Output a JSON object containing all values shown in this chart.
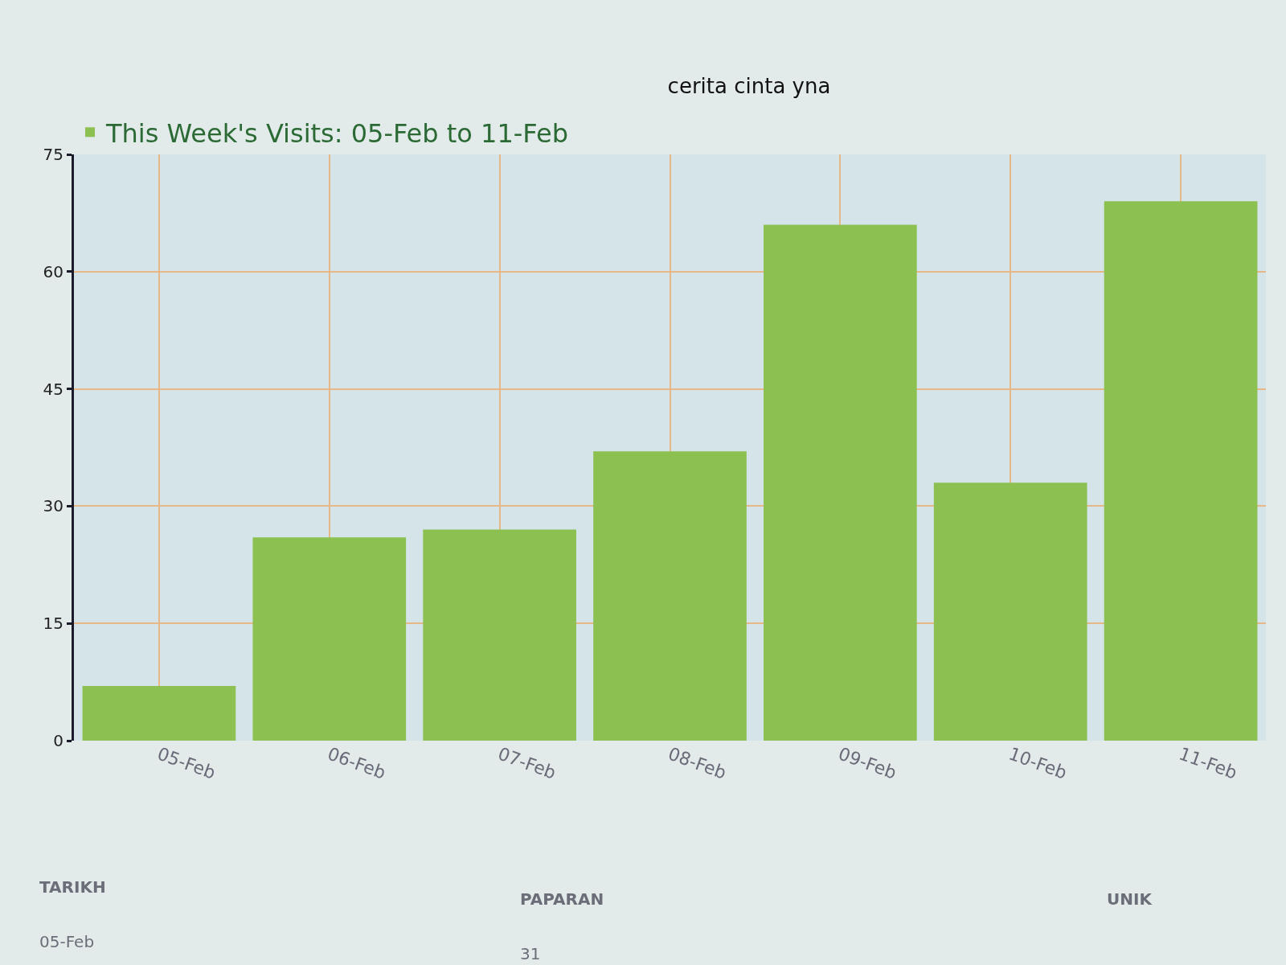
{
  "chart_data": {
    "type": "bar",
    "title": "cerita cinta yna",
    "categories": [
      "05-Feb",
      "06-Feb",
      "07-Feb",
      "08-Feb",
      "09-Feb",
      "10-Feb",
      "11-Feb"
    ],
    "series": [
      {
        "name": "This Week's Visits: 05-Feb to 11-Feb",
        "color": "#8cc152",
        "values": [
          7,
          26,
          27,
          37,
          66,
          33,
          69
        ]
      }
    ],
    "ylim": [
      0,
      75
    ],
    "yticks": [
      0,
      15,
      30,
      45,
      60,
      75
    ],
    "grid": true,
    "legend": "top left",
    "annotations": [
      "TARIKH",
      "PAPARAN",
      "UNIK",
      "05-Feb",
      "31"
    ]
  }
}
